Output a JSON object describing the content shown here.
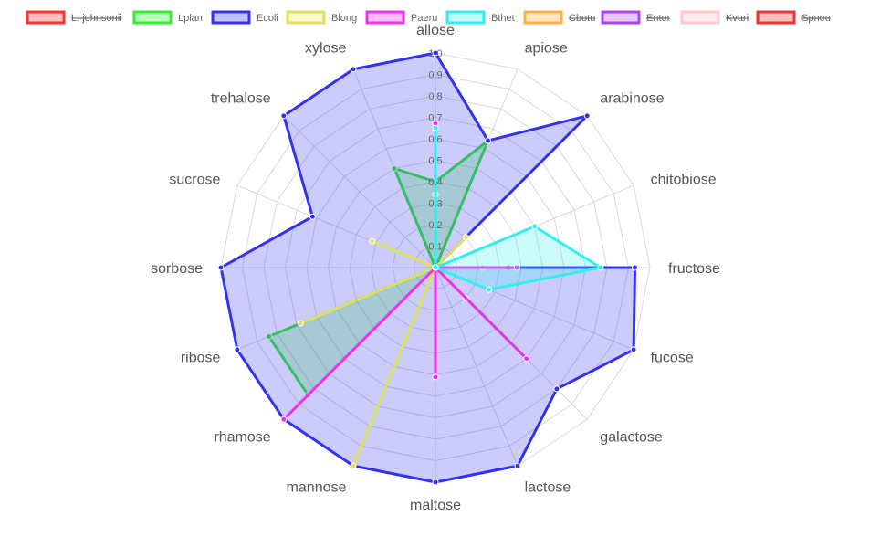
{
  "chart_data": {
    "type": "radar",
    "labels": [
      "allose",
      "apiose",
      "arabinose",
      "chitobiose",
      "fructose",
      "fucose",
      "galactose",
      "lactose",
      "maltose",
      "mannose",
      "rhamose",
      "ribose",
      "sorbose",
      "sucrose",
      "trehalose",
      "xylose"
    ],
    "r_range": [
      0,
      1
    ],
    "ticks": [
      "0",
      "0.1",
      "0.2",
      "0.3",
      "0.4",
      "0.5",
      "0.6",
      "0.7",
      "0.8",
      "0.9",
      "1.0"
    ],
    "grid": true,
    "legend_position": "top",
    "series": [
      {
        "name": "L. johnsonii",
        "color": "#ff3333",
        "hidden": true,
        "values": [
          0,
          0,
          0,
          0,
          0,
          0,
          0,
          0,
          0,
          0,
          0,
          0,
          0,
          0,
          0,
          0
        ]
      },
      {
        "name": "Lplan",
        "color": "#33ee33",
        "hidden": false,
        "values": [
          0.4,
          0.64,
          0,
          0,
          0.34,
          0,
          0.6,
          0,
          0,
          0,
          0.84,
          0.84,
          0,
          0,
          0,
          0.5
        ]
      },
      {
        "name": "Ecoli",
        "color": "#3333ee",
        "hidden": false,
        "values": [
          1,
          0.64,
          1,
          0,
          0.93,
          1,
          0.8,
          1,
          1,
          1,
          1,
          1,
          1,
          0.62,
          1,
          1
        ]
      },
      {
        "name": "Blong",
        "color": "#e0e060",
        "hidden": false,
        "values": [
          0.34,
          0,
          0.2,
          0,
          0.22,
          0,
          0.2,
          0,
          0,
          1,
          0,
          0.68,
          0,
          0.32,
          0,
          0
        ]
      },
      {
        "name": "Paeru",
        "color": "#ee33ee",
        "hidden": false,
        "values": [
          0.67,
          0,
          0,
          0,
          0.38,
          0,
          0.6,
          0,
          0.51,
          0,
          1,
          0,
          0,
          0,
          0,
          0
        ]
      },
      {
        "name": "Bthet",
        "color": "#33eeee",
        "hidden": false,
        "values": [
          0.65,
          0,
          0,
          0.5,
          0.77,
          0.27,
          0,
          0,
          0,
          0,
          0,
          0,
          0,
          0,
          0,
          0
        ]
      },
      {
        "name": "Cbotu",
        "color": "#ffb040",
        "hidden": true,
        "values": [
          0,
          0,
          0,
          0,
          0,
          0,
          0,
          0,
          0,
          0,
          0,
          0,
          0,
          0,
          0,
          0
        ]
      },
      {
        "name": "Enter",
        "color": "#aa44ee",
        "hidden": true,
        "values": [
          0,
          0,
          0,
          0,
          0,
          0,
          0,
          0,
          0,
          0,
          0,
          0,
          0,
          0,
          0,
          0
        ]
      },
      {
        "name": "Kvari",
        "color": "#ffc8cc",
        "hidden": true,
        "values": [
          0,
          0,
          0,
          0,
          0,
          0,
          0,
          0,
          0,
          0,
          0,
          0,
          0,
          0,
          0,
          0
        ]
      },
      {
        "name": "Spneu",
        "color": "#ee3333",
        "hidden": true,
        "values": [
          0,
          0,
          0,
          0,
          0,
          0,
          0,
          0,
          0,
          0,
          0,
          0,
          0,
          0,
          0,
          0
        ]
      }
    ]
  }
}
